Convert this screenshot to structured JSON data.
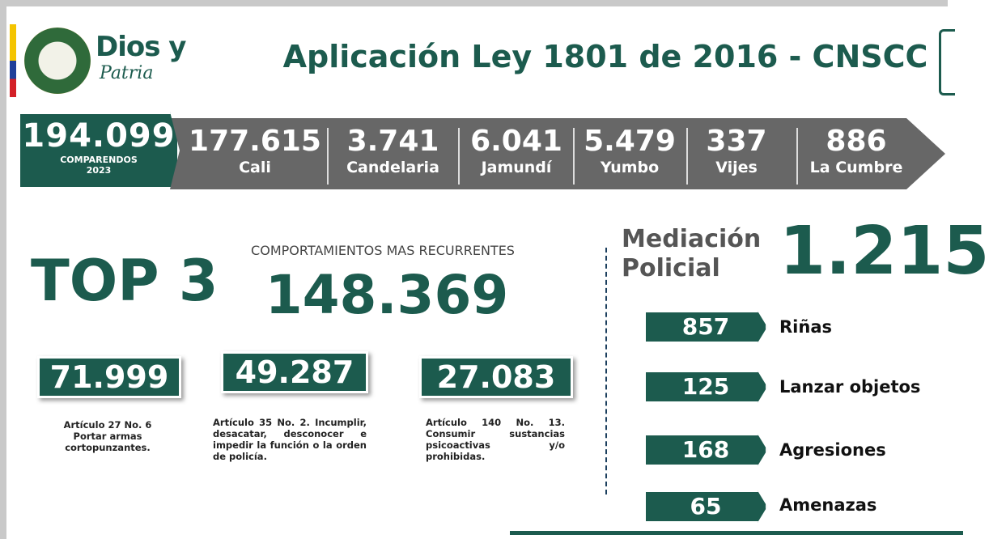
{
  "header": {
    "logo_text": "Dios y",
    "logo_script": "Patria",
    "title": "Aplicación Ley 1801 de 2016 - CNSCC"
  },
  "total": {
    "value": "194.099",
    "label": "COMPARENDOS",
    "year": "2023"
  },
  "municipalities": [
    {
      "value": "177.615",
      "name": "Cali"
    },
    {
      "value": "3.741",
      "name": "Candelaria"
    },
    {
      "value": "6.041",
      "name": "Jamundí"
    },
    {
      "value": "5.479",
      "name": "Yumbo"
    },
    {
      "value": "337",
      "name": "Vijes"
    },
    {
      "value": "886",
      "name": "La Cumbre"
    }
  ],
  "top3": {
    "title": "TOP 3",
    "subtitle": "COMPORTAMIENTOS MAS RECURRENTES",
    "total": "148.369",
    "items": [
      {
        "value": "71.999",
        "description": "Artículo 27 No. 6 Portar armas cortopunzantes."
      },
      {
        "value": "49.287",
        "description": "Artículo 35 No. 2. Incumplir, desacatar, desconocer e impedir la función o la orden de policía."
      },
      {
        "value": "27.083",
        "description": "Artículo 140 No. 13. Consumir sustancias psicoactivas y/o prohibidas."
      }
    ]
  },
  "mediation": {
    "title": "Mediación Policial",
    "total": "1.215",
    "items": [
      {
        "value": "857",
        "label": "Riñas"
      },
      {
        "value": "125",
        "label": "Lanzar objetos"
      },
      {
        "value": "168",
        "label": "Agresiones"
      },
      {
        "value": "65",
        "label": "Amenazas"
      }
    ]
  }
}
